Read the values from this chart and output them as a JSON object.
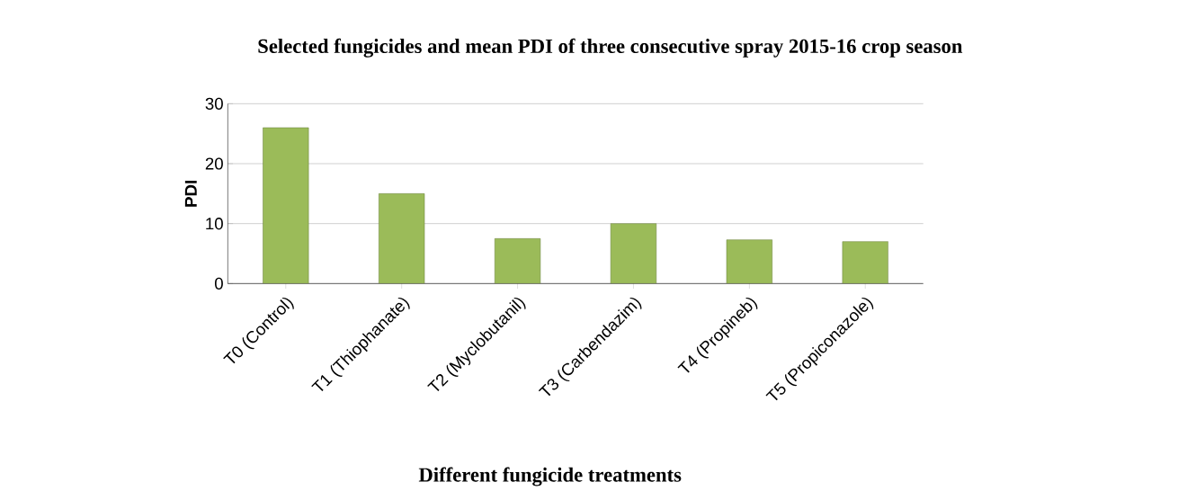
{
  "chart_data": {
    "type": "bar",
    "title": "Selected fungicides and mean PDI of three consecutive spray 2015-16 crop season",
    "xlabel": "Different fungicide treatments",
    "ylabel": "PDI",
    "categories": [
      "T0 (Control)",
      "T1 (Thiophanate)",
      "T2 (Myclobutanil)",
      "T3 (Carbendazim)",
      "T4 (Propineb)",
      "T5 (Propiconazole)"
    ],
    "values": [
      26,
      15,
      7.5,
      10,
      7.3,
      7
    ],
    "color": "#9bbb59",
    "ylim": [
      0,
      30
    ],
    "yticks": [
      0,
      10,
      20,
      30
    ],
    "grid": "y"
  }
}
